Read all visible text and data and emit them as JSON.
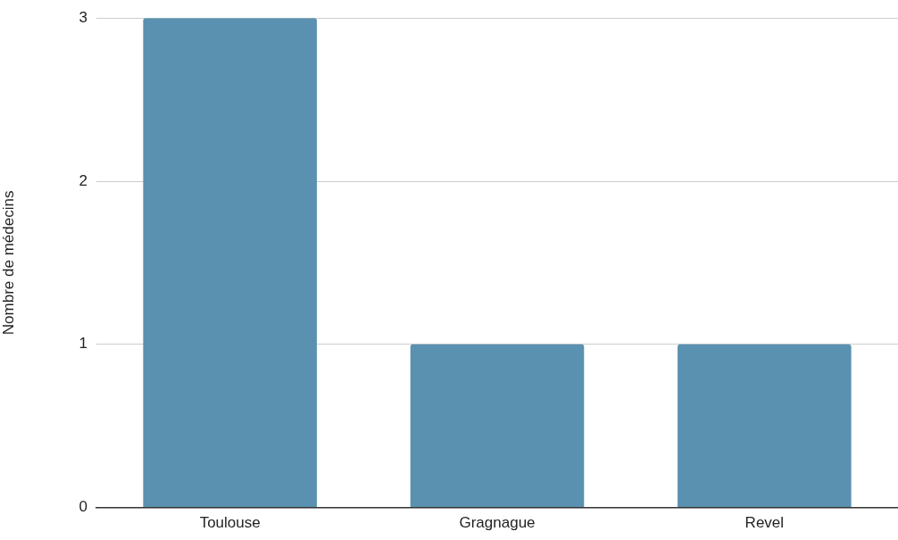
{
  "chart_data": {
    "type": "bar",
    "ylabel": "Nombre de médecins",
    "categories": [
      "Toulouse",
      "Gragnague",
      "Revel"
    ],
    "values": [
      3,
      1,
      1
    ],
    "color": "#5a91b0",
    "ylim": [
      0,
      3
    ],
    "yticks": [
      0,
      1,
      2,
      3
    ],
    "grid": "y"
  }
}
